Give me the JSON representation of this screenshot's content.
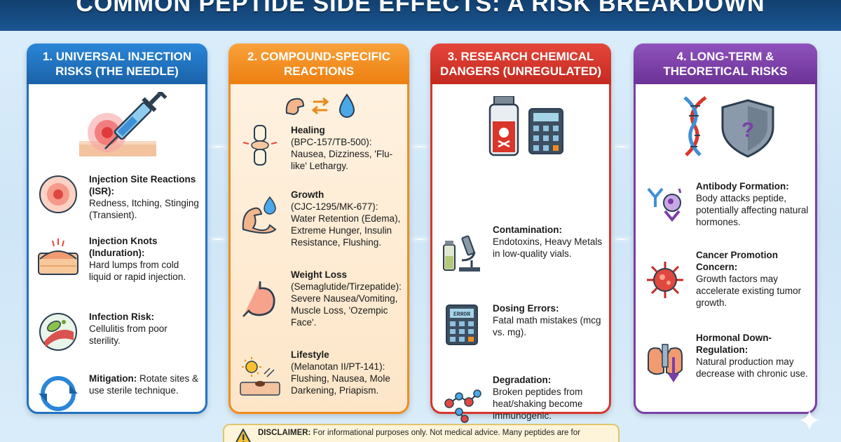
{
  "title": "COMMON PEPTIDE SIDE EFFECTS: A RISK BREAKDOWN",
  "colors": {
    "blue": "#1f73c2",
    "orange": "#f28c1e",
    "red": "#d9362b",
    "purple": "#7b3fa8"
  },
  "columns": [
    {
      "header": "1. UNIVERSAL INJECTION RISKS (THE NEEDLE)",
      "hero_icon": "syringe-icon",
      "items": [
        {
          "icon": "skin-redness-icon",
          "title": "Injection Site Reactions (ISR):",
          "text": "Redness, Itching, Stinging (Transient)."
        },
        {
          "icon": "skin-lump-icon",
          "title": "Injection Knots (Induration):",
          "text": "Hard lumps from cold liquid or rapid injection."
        },
        {
          "icon": "bacteria-icon",
          "title": "Infection Risk:",
          "text": "Cellulitis from poor sterility."
        },
        {
          "icon": "rotate-arrows-icon",
          "title": "Mitigation:",
          "text": "Rotate sites & use sterile technique."
        }
      ]
    },
    {
      "header": "2. COMPOUND-SPECIFIC REACTIONS",
      "hero_icon": "muscle-swap-drop-icon",
      "items": [
        {
          "icon": "joint-icon",
          "title": "Healing",
          "text": "(BPC-157/TB-500): Nausea, Dizziness, 'Flu-like' Lethargy."
        },
        {
          "icon": "arm-water-icon",
          "title": "Growth",
          "text": "(CJC-1295/MK-677): Water Retention (Edema), Extreme Hunger, Insulin Resistance, Flushing."
        },
        {
          "icon": "stomach-icon",
          "title": "Weight Loss",
          "text": "(Semaglutide/Tirzepatide): Severe Nausea/Vomiting, Muscle Loss, 'Ozempic Face'."
        },
        {
          "icon": "sun-skin-icon",
          "title": "Lifestyle",
          "text": "(Melanotan II/PT-141): Flushing, Nausea, Mole Darkening, Priapism."
        }
      ]
    },
    {
      "header": "3. RESEARCH CHEMICAL DANGERS (UNREGULATED)",
      "hero_icon": "poison-vial-calculator-icon",
      "items": [
        {
          "icon": "microscope-vial-icon",
          "title": "Contamination:",
          "text": "Endotoxins, Heavy Metals in low-quality vials."
        },
        {
          "icon": "calculator-error-icon",
          "title": "Dosing Errors:",
          "text": "Fatal math mistakes (mcg vs. mg)."
        },
        {
          "icon": "molecule-icon",
          "title": "Degradation:",
          "text": "Broken peptides from heat/shaking become immunogenic."
        }
      ],
      "calc_screen": "ERROR"
    },
    {
      "header": "4. LONG-TERM & THEORETICAL RISKS",
      "hero_icon": "dna-shield-icon",
      "items": [
        {
          "icon": "antibody-icon",
          "title": "Antibody Formation:",
          "text": "Body attacks peptide, potentially affecting natural hormones."
        },
        {
          "icon": "cancer-cell-icon",
          "title": "Cancer Promotion Concern:",
          "text": "Growth factors may accelerate existing tumor growth."
        },
        {
          "icon": "gland-down-icon",
          "title": "Hormonal Down-Regulation:",
          "text": "Natural production may decrease with chronic use."
        }
      ]
    }
  ],
  "disclaimer": {
    "label": "DISCLAIMER:",
    "text": "For informational purposes only. Not medical advice. Many peptides are for"
  }
}
